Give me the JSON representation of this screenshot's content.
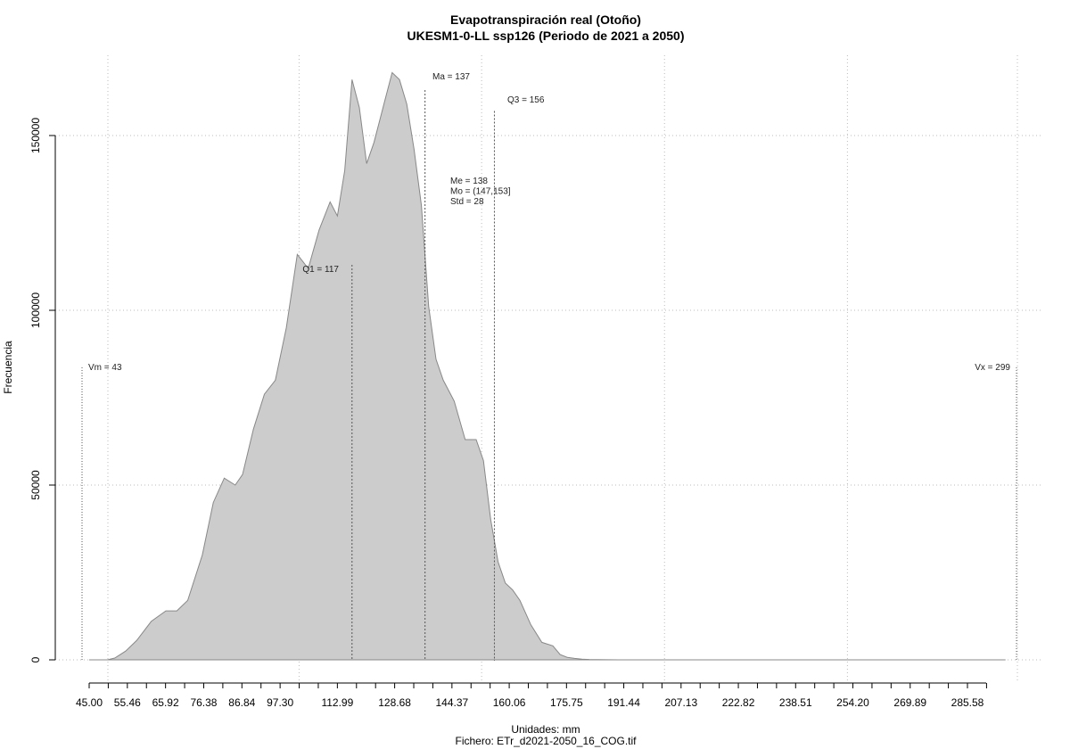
{
  "chart_data": {
    "type": "area",
    "title": "Evapotranspiración real (Otoño)",
    "subtitle": "UKESM1-0-LL ssp126 (Periodo de 2021 a 2050)",
    "xlabel": "Unidades: mm",
    "ylabel": "Frecuencia",
    "footer": "Fichero: ETr_d2021-2050_16_COG.tif",
    "xlim": [
      45,
      299
    ],
    "ylim": [
      0,
      170000
    ],
    "grid": true,
    "x_ticks": [
      "45.00",
      "55.46",
      "65.92",
      "76.38",
      "86.84",
      "97.30",
      "112.99",
      "128.68",
      "144.37",
      "160.06",
      "175.75",
      "191.44",
      "207.13",
      "222.82",
      "238.51",
      "254.20",
      "269.89",
      "285.58"
    ],
    "y_ticks": [
      "0",
      "50000",
      "100000",
      "150000"
    ],
    "y_tick_values": [
      0,
      50000,
      100000,
      150000
    ],
    "series": [
      {
        "x": [
          45,
          50,
          52,
          55,
          58,
          62,
          66,
          69,
          72,
          76,
          79,
          82,
          85,
          87,
          90,
          93,
          96,
          99,
          102,
          105,
          108,
          111,
          113,
          115,
          117,
          119,
          121,
          123,
          126,
          128,
          130,
          132,
          134,
          136,
          138,
          140,
          142,
          145,
          148,
          151,
          153,
          155,
          157,
          159,
          161,
          163,
          166,
          169,
          172,
          174,
          176,
          178,
          180,
          182,
          184,
          187,
          190,
          193,
          196,
          200,
          204,
          208,
          212,
          216,
          222,
          232,
          245,
          260,
          275,
          290,
          296
        ],
        "y": [
          0,
          0,
          500,
          2500,
          5500,
          11000,
          14000,
          14000,
          17000,
          30000,
          45000,
          52000,
          50000,
          53000,
          66000,
          76000,
          80000,
          95000,
          116000,
          112000,
          123000,
          131000,
          127000,
          140000,
          166000,
          158000,
          142000,
          148000,
          160000,
          168000,
          166000,
          159000,
          146000,
          130000,
          101000,
          86000,
          80000,
          74000,
          63000,
          63000,
          57000,
          40000,
          28000,
          22000,
          20000,
          17000,
          10000,
          5000,
          4000,
          1500,
          700,
          400,
          200,
          100,
          50,
          20,
          10,
          5,
          0,
          0,
          0,
          0,
          0,
          0,
          0,
          0,
          0,
          0,
          0,
          0,
          0
        ]
      }
    ],
    "markers": [
      {
        "label": "Vm = 43",
        "x": 43
      },
      {
        "label": "Q1 = 117",
        "x": 117
      },
      {
        "label": "Ma = 137",
        "x": 137
      },
      {
        "label": "Q3 = 156",
        "x": 156
      },
      {
        "label": "Vx = 299",
        "x": 299
      }
    ],
    "stats": [
      "Me = 138",
      "Mo = (147,153]",
      "Std = 28"
    ],
    "colors": {
      "fill": "#cccccc",
      "stroke": "#888888",
      "grid": "#bbbbbb"
    }
  }
}
